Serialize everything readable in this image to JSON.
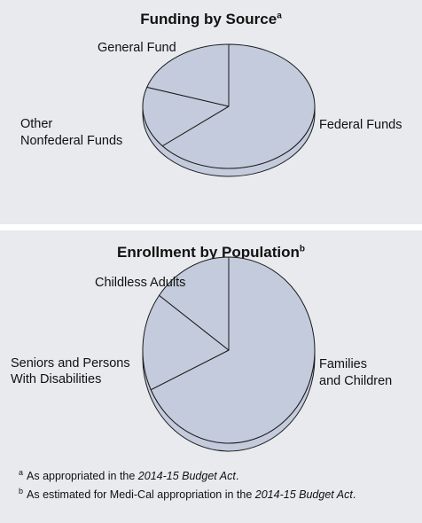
{
  "colors": {
    "background": "#e8eaee",
    "slice": "#c3cbdc",
    "edge": "#1a1a1a",
    "divider": "#ffffff"
  },
  "chart_data": [
    {
      "type": "pie",
      "title": "Funding by Source",
      "title_note": "a",
      "slices": [
        {
          "label": "Federal Funds",
          "value": 64
        },
        {
          "label": "Other Nonfederal Funds",
          "value": 16
        },
        {
          "label": "General Fund",
          "value": 20
        }
      ]
    },
    {
      "type": "pie",
      "title": "Enrollment by Population",
      "title_note": "b",
      "slices": [
        {
          "label": "Families and Children",
          "value": 68
        },
        {
          "label": "Seniors and Persons With Disabilities",
          "value": 17
        },
        {
          "label": "Childless Adults",
          "value": 15
        }
      ]
    }
  ],
  "labels": {
    "funding": {
      "general": "General Fund",
      "other_line1": "Other",
      "other_line2": "Nonfederal Funds",
      "federal": "Federal Funds"
    },
    "enroll": {
      "childless": "Childless Adults",
      "seniors_line1": "Seniors and Persons",
      "seniors_line2": "With Disabilities",
      "families_line1": "Families",
      "families_line2": "and Children"
    }
  },
  "footnotes": {
    "a_marker": "a",
    "a_text": "As appropriated in the ",
    "a_italic": "2014-15 Budget Act",
    "a_end": ".",
    "b_marker": "b",
    "b_text": "As estimated for Medi-Cal appropriation in the ",
    "b_italic": "2014-15 Budget Act",
    "b_end": "."
  }
}
